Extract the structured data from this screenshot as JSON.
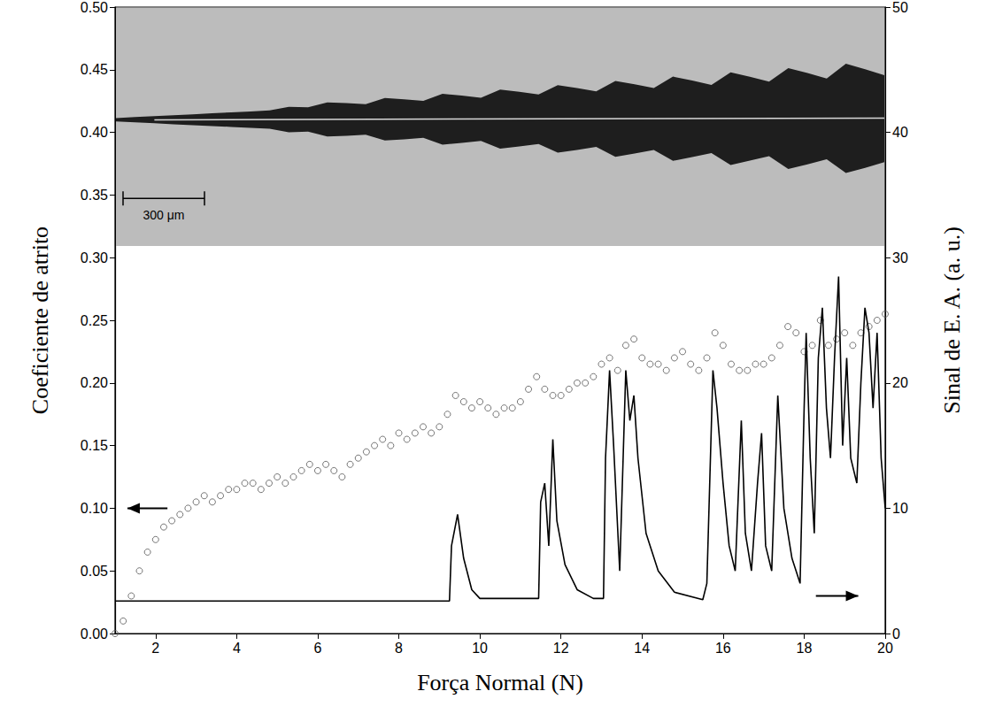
{
  "chart_data": {
    "type": "scatter",
    "xlabel": "Força Normal (N)",
    "ylabel": "Coeficiente de atrito",
    "y2label": "Sinal de E. A. (a. u.)",
    "annotations": [
      "300 μm"
    ],
    "grid": false,
    "xlim": [
      1,
      20
    ],
    "xticks": [
      2,
      4,
      6,
      8,
      10,
      12,
      14,
      16,
      18,
      20
    ],
    "ylim": [
      0,
      0.5
    ],
    "yticks": [
      {
        "value": 0,
        "label": "0.00"
      },
      {
        "value": 0.05,
        "label": "0.05"
      },
      {
        "value": 0.1,
        "label": "0.10"
      },
      {
        "value": 0.15,
        "label": "0.15"
      },
      {
        "value": 0.2,
        "label": "0.20"
      },
      {
        "value": 0.25,
        "label": "0.25"
      },
      {
        "value": 0.3,
        "label": "0.30"
      },
      {
        "value": 0.35,
        "label": "0.35"
      },
      {
        "value": 0.4,
        "label": "0.40"
      },
      {
        "value": 0.45,
        "label": "0.45"
      },
      {
        "value": 0.5,
        "label": "0.50"
      }
    ],
    "y2lim": [
      0,
      50
    ],
    "y2ticks": [
      0,
      10,
      20,
      30,
      40,
      50
    ],
    "series": [
      {
        "type": "scatter",
        "marker": "open_circle",
        "color": "#555555",
        "x": [
          1.0,
          1.2,
          1.4,
          1.6,
          1.8,
          2.0,
          2.2,
          2.4,
          2.6,
          2.8,
          3.0,
          3.2,
          3.4,
          3.6,
          3.8,
          4.0,
          4.2,
          4.4,
          4.6,
          4.8,
          5.0,
          5.2,
          5.4,
          5.6,
          5.8,
          6.0,
          6.2,
          6.4,
          6.6,
          6.8,
          7.0,
          7.2,
          7.4,
          7.6,
          7.8,
          8.0,
          8.2,
          8.4,
          8.6,
          8.8,
          9.0,
          9.2,
          9.4,
          9.6,
          9.8,
          10.0,
          10.2,
          10.4,
          10.6,
          10.8,
          11.0,
          11.2,
          11.4,
          11.6,
          11.8,
          12.0,
          12.2,
          12.4,
          12.6,
          12.8,
          13.0,
          13.2,
          13.4,
          13.6,
          13.8,
          14.0,
          14.2,
          14.4,
          14.6,
          14.8,
          15.0,
          15.2,
          15.4,
          15.6,
          15.8,
          16.0,
          16.2,
          16.4,
          16.6,
          16.8,
          17.0,
          17.2,
          17.4,
          17.6,
          17.8,
          18.0,
          18.2,
          18.4,
          18.6,
          18.8,
          19.0,
          19.2,
          19.4,
          19.6,
          19.8,
          20.0
        ],
        "values": [
          0.0,
          0.01,
          0.03,
          0.05,
          0.065,
          0.075,
          0.085,
          0.09,
          0.095,
          0.1,
          0.105,
          0.11,
          0.105,
          0.11,
          0.115,
          0.115,
          0.12,
          0.12,
          0.115,
          0.12,
          0.125,
          0.12,
          0.125,
          0.13,
          0.135,
          0.13,
          0.135,
          0.13,
          0.125,
          0.135,
          0.14,
          0.145,
          0.15,
          0.155,
          0.15,
          0.16,
          0.155,
          0.16,
          0.165,
          0.16,
          0.165,
          0.175,
          0.19,
          0.185,
          0.18,
          0.185,
          0.18,
          0.175,
          0.18,
          0.18,
          0.185,
          0.195,
          0.205,
          0.195,
          0.19,
          0.19,
          0.195,
          0.2,
          0.2,
          0.205,
          0.215,
          0.22,
          0.21,
          0.23,
          0.235,
          0.22,
          0.215,
          0.215,
          0.21,
          0.22,
          0.225,
          0.215,
          0.21,
          0.22,
          0.24,
          0.23,
          0.215,
          0.21,
          0.21,
          0.215,
          0.215,
          0.22,
          0.23,
          0.245,
          0.24,
          0.225,
          0.23,
          0.25,
          0.23,
          0.235,
          0.24,
          0.23,
          0.24,
          0.245,
          0.25,
          0.255
        ]
      },
      {
        "type": "line",
        "axis": "y2",
        "color": "#000000",
        "line_style": "solid",
        "x": [
          1.0,
          9.25,
          9.3,
          9.45,
          9.6,
          9.8,
          10.0,
          11.45,
          11.5,
          11.6,
          11.7,
          11.8,
          11.9,
          12.1,
          12.4,
          12.8,
          13.05,
          13.1,
          13.2,
          13.3,
          13.45,
          13.6,
          13.7,
          13.8,
          13.9,
          14.1,
          14.4,
          14.8,
          15.5,
          15.6,
          15.75,
          15.85,
          16.0,
          16.15,
          16.3,
          16.45,
          16.55,
          16.7,
          16.85,
          16.95,
          17.05,
          17.2,
          17.35,
          17.5,
          17.7,
          17.9,
          18.0,
          18.05,
          18.15,
          18.25,
          18.35,
          18.45,
          18.55,
          18.65,
          18.75,
          18.85,
          18.95,
          19.05,
          19.15,
          19.3,
          19.4,
          19.5,
          19.6,
          19.7,
          19.8,
          19.9,
          20.0
        ],
        "values": [
          2.6,
          2.6,
          7,
          9.5,
          6,
          3.5,
          2.8,
          2.8,
          10.5,
          12,
          7,
          15.5,
          9,
          5.5,
          3.5,
          2.8,
          2.8,
          14,
          21,
          15,
          5,
          21,
          17,
          19,
          14,
          8,
          5,
          3.3,
          2.7,
          4,
          21,
          18,
          12,
          7,
          5,
          17,
          8,
          5,
          12,
          16,
          7,
          5,
          19,
          10,
          6,
          4,
          18,
          24,
          14,
          8,
          22,
          26,
          18,
          14,
          22,
          28.5,
          15,
          22,
          14,
          12,
          20,
          26,
          24,
          18,
          24,
          14,
          10
        ]
      }
    ]
  }
}
